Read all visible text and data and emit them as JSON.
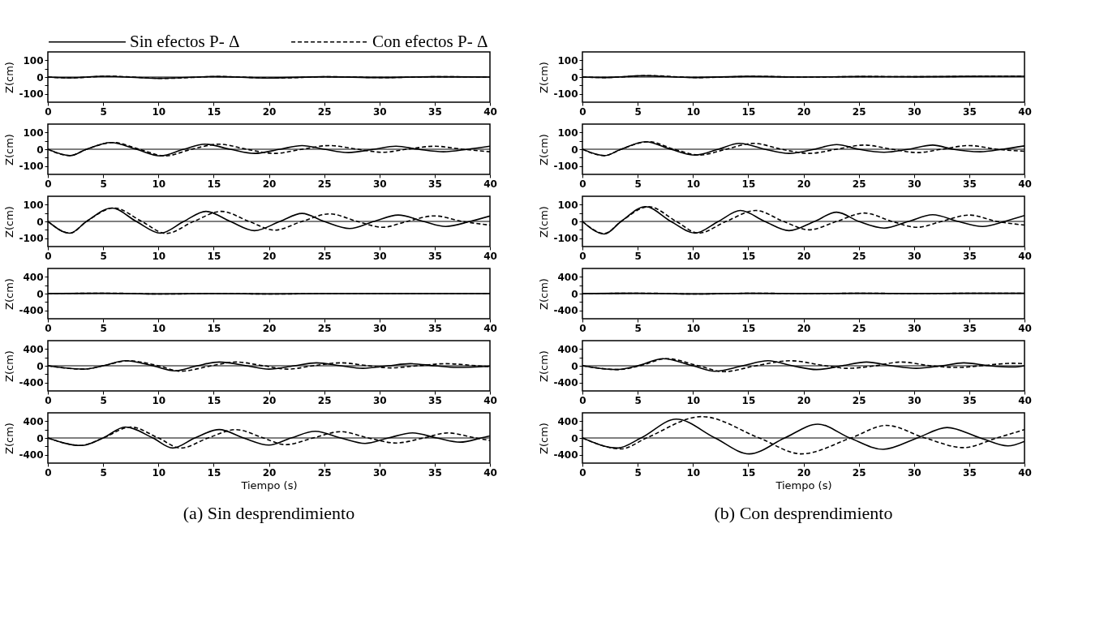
{
  "chart_data": [
    {
      "type": "line",
      "ylabel": "Z(cm)",
      "xlim": [
        0,
        40
      ],
      "xticks": [
        0,
        5,
        10,
        15,
        20,
        25,
        30,
        35,
        40
      ],
      "ylim": [
        -150,
        150
      ],
      "yticks": [
        -100,
        {
          "value": -50,
          "label": null
        },
        0,
        {
          "value": 50,
          "label": null
        },
        100
      ],
      "legend": "top",
      "ref_lines": [
        {
          "axis": "y",
          "value": 0,
          "color": "#000000"
        }
      ],
      "series": [
        {
          "name": "Sin efectos P- Δ",
          "color": "#000000",
          "line_style": "solid",
          "x": [
            0,
            2,
            5,
            10,
            15,
            20,
            25,
            30,
            35,
            40
          ],
          "values": [
            0,
            -5,
            5,
            -8,
            3,
            -6,
            2,
            -3,
            2,
            0
          ]
        },
        {
          "name": "Con efectos P- Δ",
          "color": "#000000",
          "line_style": "dashed",
          "x": [
            0,
            2,
            5.5,
            10.5,
            15.5,
            20.5,
            25.5,
            30.5,
            35.5,
            40
          ],
          "values": [
            0,
            -5,
            5,
            -8,
            3,
            -6,
            2,
            -3,
            2,
            0
          ]
        }
      ]
    },
    {
      "type": "line",
      "ylabel": "Z(cm)",
      "xlim": [
        0,
        40
      ],
      "xticks": [
        0,
        5,
        10,
        15,
        20,
        25,
        30,
        35,
        40
      ],
      "ylim": [
        -150,
        150
      ],
      "yticks": [
        -100,
        {
          "value": -50,
          "label": null
        },
        0,
        {
          "value": 50,
          "label": null
        },
        100
      ],
      "ref_lines": [
        {
          "axis": "y",
          "value": 0,
          "color": "#000000"
        }
      ],
      "series": [
        {
          "color": "#000000",
          "line_style": "solid",
          "x": [
            0,
            2,
            5.5,
            10,
            15,
            20,
            25,
            30,
            35,
            40
          ],
          "values": [
            0,
            -3,
            8,
            -3,
            4,
            0,
            3,
            2,
            4,
            5
          ]
        },
        {
          "color": "#000000",
          "line_style": "dashed",
          "x": [
            0,
            2,
            6,
            10.5,
            15.5,
            20.5,
            25.5,
            30.5,
            35.5,
            40
          ],
          "values": [
            0,
            -3,
            8,
            -3,
            4,
            0,
            3,
            2,
            4,
            5
          ]
        }
      ]
    },
    {
      "type": "line",
      "ylabel": "Z(cm)",
      "xlim": [
        0,
        40
      ],
      "xticks": [
        0,
        5,
        10,
        15,
        20,
        25,
        30,
        35,
        40
      ],
      "ylim": [
        -150,
        150
      ],
      "yticks": [
        -100,
        {
          "value": -50,
          "label": null
        },
        0,
        {
          "value": 50,
          "label": null
        },
        100
      ],
      "ref_lines": [
        {
          "axis": "y",
          "value": 0,
          "color": "#000000"
        }
      ],
      "series": [
        {
          "color": "#000000",
          "line_style": "solid",
          "x": [
            0,
            2,
            3.5,
            5.7,
            8,
            10.2,
            12.3,
            14.2,
            16.5,
            18.7,
            21,
            23,
            25,
            27.2,
            29.5,
            31.5,
            33.5,
            35.8,
            38,
            40
          ],
          "values": [
            0,
            -38,
            0,
            40,
            0,
            -40,
            0,
            30,
            0,
            -25,
            0,
            22,
            0,
            -20,
            0,
            18,
            0,
            -15,
            0,
            18
          ]
        },
        {
          "color": "#000000",
          "line_style": "dashed",
          "x": [
            0,
            2,
            3.5,
            5.9,
            8.3,
            10.6,
            13,
            15.5,
            18,
            20.5,
            23,
            25.5,
            28,
            30.3,
            32.5,
            35,
            37.5,
            40
          ],
          "values": [
            0,
            -38,
            0,
            40,
            0,
            -40,
            0,
            30,
            0,
            -25,
            0,
            22,
            0,
            -18,
            0,
            18,
            0,
            -15
          ]
        }
      ]
    },
    {
      "type": "line",
      "ylabel": "Z(cm)",
      "xlim": [
        0,
        40
      ],
      "xticks": [
        0,
        5,
        10,
        15,
        20,
        25,
        30,
        35,
        40
      ],
      "ylim": [
        -150,
        150
      ],
      "yticks": [
        -100,
        {
          "value": -50,
          "label": null
        },
        0,
        {
          "value": 50,
          "label": null
        },
        100
      ],
      "ref_lines": [
        {
          "axis": "y",
          "value": 0,
          "color": "#000000"
        }
      ],
      "series": [
        {
          "color": "#000000",
          "line_style": "solid",
          "x": [
            0,
            2,
            3.5,
            5.7,
            8,
            10.2,
            12.3,
            14.2,
            16.5,
            18.7,
            21,
            23,
            25,
            27.3,
            29.5,
            31.7,
            33.5,
            36,
            38,
            40
          ],
          "values": [
            0,
            -38,
            0,
            45,
            0,
            -35,
            0,
            35,
            0,
            -25,
            0,
            28,
            0,
            -18,
            0,
            25,
            0,
            -15,
            0,
            20
          ]
        },
        {
          "color": "#000000",
          "line_style": "dashed",
          "x": [
            0,
            2,
            3.5,
            6,
            8.3,
            10.6,
            13,
            15.5,
            18,
            20.5,
            23,
            25.5,
            28,
            30.3,
            32.5,
            35,
            37.5,
            40
          ],
          "values": [
            0,
            -38,
            0,
            45,
            0,
            -35,
            0,
            35,
            0,
            -25,
            0,
            25,
            0,
            -20,
            0,
            22,
            0,
            -12
          ]
        }
      ]
    },
    {
      "type": "line",
      "ylabel": "Z(cm)",
      "xlim": [
        0,
        40
      ],
      "xticks": [
        0,
        5,
        10,
        15,
        20,
        25,
        30,
        35,
        40
      ],
      "ylim": [
        -150,
        150
      ],
      "yticks": [
        -100,
        {
          "value": -50,
          "label": null
        },
        0,
        {
          "value": 50,
          "label": null
        },
        100
      ],
      "ref_lines": [
        {
          "axis": "y",
          "value": 0,
          "color": "#000000"
        }
      ],
      "series": [
        {
          "color": "#000000",
          "line_style": "solid",
          "x": [
            0,
            2,
            3.5,
            5.8,
            8,
            10.2,
            12.3,
            14.3,
            16.5,
            18.7,
            21,
            23,
            25,
            27.3,
            29.5,
            31.7,
            34,
            36,
            38.2,
            40
          ],
          "values": [
            0,
            -70,
            0,
            80,
            0,
            -70,
            0,
            60,
            0,
            -55,
            0,
            48,
            0,
            -42,
            0,
            38,
            0,
            -30,
            0,
            32
          ]
        },
        {
          "color": "#000000",
          "line_style": "dashed",
          "x": [
            0,
            2,
            3.5,
            6,
            8.5,
            10.7,
            13.2,
            15.7,
            18.2,
            20.5,
            23,
            25.5,
            28,
            30.3,
            32.5,
            35,
            37.5,
            40
          ],
          "values": [
            0,
            -70,
            0,
            80,
            0,
            -72,
            0,
            60,
            0,
            -52,
            0,
            45,
            0,
            -35,
            0,
            33,
            0,
            -22
          ]
        }
      ]
    },
    {
      "type": "line",
      "ylabel": "Z(cm)",
      "xlim": [
        0,
        40
      ],
      "xticks": [
        0,
        5,
        10,
        15,
        20,
        25,
        30,
        35,
        40
      ],
      "ylim": [
        -150,
        150
      ],
      "yticks": [
        -100,
        {
          "value": -50,
          "label": null
        },
        0,
        {
          "value": 50,
          "label": null
        },
        100
      ],
      "ref_lines": [
        {
          "axis": "y",
          "value": 0,
          "color": "#000000"
        }
      ],
      "series": [
        {
          "color": "#000000",
          "line_style": "solid",
          "x": [
            0,
            2,
            3.5,
            5.7,
            8,
            10.2,
            12.3,
            14.3,
            16.5,
            18.7,
            21,
            23,
            25,
            27.3,
            29.5,
            31.7,
            34,
            36.2,
            38.2,
            40
          ],
          "values": [
            0,
            -75,
            0,
            88,
            0,
            -70,
            0,
            65,
            0,
            -55,
            0,
            55,
            0,
            -40,
            0,
            40,
            0,
            -30,
            0,
            35
          ]
        },
        {
          "color": "#000000",
          "line_style": "dashed",
          "x": [
            0,
            2,
            3.5,
            6,
            8.5,
            10.5,
            13,
            15.7,
            18.2,
            20.5,
            23,
            25.5,
            28,
            30.3,
            32.5,
            35,
            37.5,
            40
          ],
          "values": [
            0,
            -72,
            0,
            88,
            0,
            -70,
            0,
            65,
            0,
            -50,
            0,
            50,
            0,
            -35,
            0,
            38,
            0,
            -22
          ]
        }
      ]
    },
    {
      "type": "line",
      "ylabel": "Z(cm)",
      "xlim": [
        0,
        40
      ],
      "xticks": [
        0,
        5,
        10,
        15,
        20,
        25,
        30,
        35,
        40
      ],
      "ylim": [
        -600,
        600
      ],
      "yticks": [
        -400,
        {
          "value": -200,
          "label": null
        },
        0,
        {
          "value": 200,
          "label": null
        },
        400
      ],
      "ref_lines": [
        {
          "axis": "y",
          "value": 0,
          "color": "#000000"
        }
      ],
      "series": [
        {
          "color": "#000000",
          "line_style": "solid",
          "x": [
            0,
            5,
            10,
            15,
            20,
            25,
            30,
            35,
            40
          ],
          "values": [
            0,
            10,
            -10,
            0,
            -10,
            0,
            0,
            0,
            0
          ]
        },
        {
          "color": "#000000",
          "line_style": "dashed",
          "x": [
            0,
            5.5,
            10.5,
            15.5,
            20.5,
            25.5,
            30.5,
            35.5,
            40
          ],
          "values": [
            0,
            10,
            -10,
            0,
            -10,
            0,
            0,
            0,
            0
          ]
        }
      ]
    },
    {
      "type": "line",
      "ylabel": "Z(cm)",
      "xlim": [
        0,
        40
      ],
      "xticks": [
        0,
        5,
        10,
        15,
        20,
        25,
        30,
        35,
        40
      ],
      "ylim": [
        -600,
        600
      ],
      "yticks": [
        -400,
        {
          "value": -200,
          "label": null
        },
        0,
        {
          "value": 200,
          "label": null
        },
        400
      ],
      "ref_lines": [
        {
          "axis": "y",
          "value": 0,
          "color": "#000000"
        }
      ],
      "series": [
        {
          "color": "#000000",
          "line_style": "solid",
          "x": [
            0,
            5,
            10,
            15,
            20,
            25,
            30,
            35,
            40
          ],
          "values": [
            0,
            10,
            -10,
            10,
            0,
            10,
            0,
            10,
            10
          ]
        },
        {
          "color": "#000000",
          "line_style": "dashed",
          "x": [
            0,
            5.5,
            10.5,
            15.5,
            20.5,
            25.5,
            30.5,
            35.5,
            40
          ],
          "values": [
            0,
            10,
            -10,
            10,
            0,
            10,
            0,
            10,
            10
          ]
        }
      ]
    },
    {
      "type": "line",
      "ylabel": "Z(cm)",
      "xlim": [
        0,
        40
      ],
      "xticks": [
        0,
        5,
        10,
        15,
        20,
        25,
        30,
        35,
        40
      ],
      "ylim": [
        -600,
        600
      ],
      "yticks": [
        -400,
        {
          "value": -200,
          "label": null
        },
        0,
        {
          "value": 200,
          "label": null
        },
        400
      ],
      "ref_lines": [
        {
          "axis": "y",
          "value": 0,
          "color": "#000000"
        }
      ],
      "series": [
        {
          "color": "#000000",
          "line_style": "solid",
          "x": [
            0,
            3.2,
            5,
            7,
            9.5,
            11.5,
            13.5,
            15.5,
            18,
            20,
            22.3,
            24.3,
            26.5,
            28.5,
            30.8,
            32.8,
            35,
            37,
            40
          ],
          "values": [
            0,
            -80,
            0,
            120,
            0,
            -120,
            0,
            90,
            0,
            -80,
            0,
            70,
            0,
            -60,
            0,
            50,
            0,
            -40,
            -10
          ]
        },
        {
          "color": "#000000",
          "line_style": "dashed",
          "x": [
            0,
            3.2,
            5,
            7.3,
            10,
            12,
            14.8,
            17,
            19.5,
            21.7,
            24,
            26.5,
            29,
            31,
            33.5,
            36,
            38.8,
            40
          ],
          "values": [
            0,
            -80,
            0,
            120,
            0,
            -130,
            0,
            90,
            0,
            -80,
            0,
            70,
            0,
            -50,
            0,
            50,
            0,
            -20
          ]
        }
      ]
    },
    {
      "type": "line",
      "ylabel": "Z(cm)",
      "xlim": [
        0,
        40
      ],
      "xticks": [
        0,
        5,
        10,
        15,
        20,
        25,
        30,
        35,
        40
      ],
      "ylim": [
        -600,
        600
      ],
      "yticks": [
        -400,
        {
          "value": -200,
          "label": null
        },
        0,
        {
          "value": 200,
          "label": null
        },
        400
      ],
      "ref_lines": [
        {
          "axis": "y",
          "value": 0,
          "color": "#000000"
        }
      ],
      "series": [
        {
          "color": "#000000",
          "line_style": "solid",
          "x": [
            0,
            3,
            5,
            7.3,
            10,
            12,
            14.5,
            16.8,
            19,
            21.2,
            23.5,
            25.7,
            28,
            30.2,
            32.5,
            34.5,
            36.8,
            39,
            40
          ],
          "values": [
            0,
            -90,
            0,
            170,
            0,
            -130,
            0,
            120,
            0,
            -90,
            0,
            90,
            0,
            -60,
            0,
            70,
            0,
            -30,
            0
          ]
        },
        {
          "color": "#000000",
          "line_style": "dashed",
          "x": [
            0,
            3.3,
            5.2,
            7.6,
            10.5,
            12.8,
            15.7,
            18.8,
            22,
            24,
            26.5,
            28.8,
            31.5,
            34,
            36,
            39,
            40
          ],
          "values": [
            0,
            -90,
            0,
            170,
            0,
            -140,
            0,
            120,
            0,
            -60,
            0,
            90,
            0,
            -40,
            0,
            60,
            50
          ]
        }
      ]
    },
    {
      "type": "line",
      "ylabel": "Z(cm)",
      "xlabel": "Tiempo  (s)",
      "xlim": [
        0,
        40
      ],
      "xticks": [
        0,
        5,
        10,
        15,
        20,
        25,
        30,
        35,
        40
      ],
      "ylim": [
        -600,
        600
      ],
      "yticks": [
        -400,
        {
          "value": -200,
          "label": null
        },
        0,
        {
          "value": 200,
          "label": null
        },
        400
      ],
      "ref_lines": [
        {
          "axis": "y",
          "value": 0,
          "color": "#000000"
        }
      ],
      "annotations": [
        "(a) Sin desprendimiento"
      ],
      "series": [
        {
          "color": "#000000",
          "line_style": "solid",
          "x": [
            0,
            3,
            5,
            7,
            9.5,
            11.3,
            13.3,
            15.5,
            17.7,
            20,
            22,
            24.2,
            26.5,
            28.7,
            30.8,
            33,
            35.2,
            37.3,
            39.2,
            40
          ],
          "values": [
            0,
            -180,
            0,
            260,
            0,
            -240,
            0,
            200,
            0,
            -170,
            0,
            160,
            0,
            -130,
            0,
            120,
            0,
            -100,
            0,
            50
          ]
        },
        {
          "color": "#000000",
          "line_style": "dashed",
          "x": [
            0,
            3,
            5,
            7.5,
            10,
            12,
            14.5,
            17,
            19.5,
            21.5,
            24,
            26.5,
            29,
            31.5,
            34,
            36.2,
            38.7,
            40
          ],
          "values": [
            0,
            -180,
            0,
            260,
            0,
            -240,
            0,
            200,
            0,
            -160,
            0,
            150,
            0,
            -120,
            0,
            120,
            0,
            -60
          ]
        }
      ]
    },
    {
      "type": "line",
      "ylabel": "Z(cm)",
      "xlabel": "Tiempo  (s)",
      "xlim": [
        0,
        40
      ],
      "xticks": [
        0,
        5,
        10,
        15,
        20,
        25,
        30,
        35,
        40
      ],
      "ylim": [
        -600,
        600
      ],
      "yticks": [
        -400,
        {
          "value": -200,
          "label": null
        },
        0,
        {
          "value": 200,
          "label": null
        },
        400
      ],
      "ref_lines": [
        {
          "axis": "y",
          "value": 0,
          "color": "#000000"
        }
      ],
      "annotations": [
        "(b) Con desprendimiento"
      ],
      "series": [
        {
          "color": "#000000",
          "line_style": "solid",
          "x": [
            0,
            3.2,
            5.3,
            8.5,
            12,
            15.1,
            18.3,
            21.3,
            24.2,
            27.2,
            30.3,
            33,
            36,
            38.5,
            40
          ],
          "values": [
            0,
            -240,
            0,
            450,
            0,
            -380,
            0,
            330,
            0,
            -270,
            0,
            250,
            0,
            -190,
            -80
          ]
        },
        {
          "color": "#000000",
          "line_style": "dashed",
          "x": [
            0,
            3.5,
            5.8,
            10.8,
            16,
            19.8,
            24.3,
            27.5,
            31,
            34.5,
            37.5,
            40
          ],
          "values": [
            0,
            -260,
            0,
            510,
            0,
            -380,
            0,
            300,
            0,
            -230,
            0,
            200
          ]
        }
      ]
    }
  ]
}
